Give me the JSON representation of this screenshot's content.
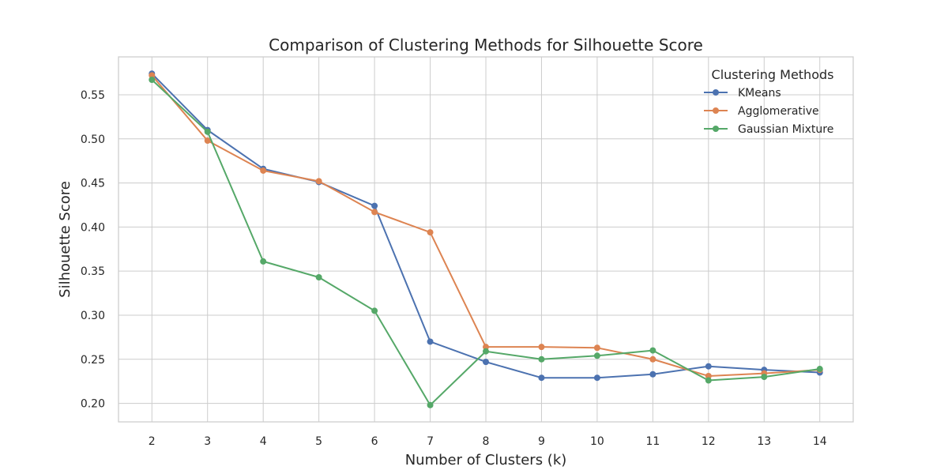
{
  "chart_data": {
    "type": "line",
    "title": "Comparison of Clustering Methods for Silhouette Score",
    "xlabel": "Number of Clusters (k)",
    "ylabel": "Silhouette Score",
    "x": [
      2,
      3,
      4,
      5,
      6,
      7,
      8,
      9,
      10,
      11,
      12,
      13,
      14
    ],
    "xlim": [
      1.4,
      14.6
    ],
    "ylim": [
      0.179,
      0.593
    ],
    "yticks": [
      0.2,
      0.25,
      0.3,
      0.35,
      0.4,
      0.45,
      0.5,
      0.55
    ],
    "grid": true,
    "legend": {
      "title": "Clustering Methods",
      "position": "top-right"
    },
    "series": [
      {
        "name": "KMeans",
        "color": "#4c72b0",
        "values": [
          0.574,
          0.51,
          0.466,
          0.451,
          0.424,
          0.27,
          0.247,
          0.229,
          0.229,
          0.233,
          0.242,
          0.238,
          0.235
        ]
      },
      {
        "name": "Agglomerative",
        "color": "#dd8452",
        "values": [
          0.572,
          0.498,
          0.464,
          0.452,
          0.417,
          0.394,
          0.264,
          0.264,
          0.263,
          0.25,
          0.231,
          0.234,
          0.238
        ]
      },
      {
        "name": "Gaussian Mixture",
        "color": "#55a868",
        "values": [
          0.567,
          0.508,
          0.361,
          0.343,
          0.305,
          0.198,
          0.259,
          0.25,
          0.254,
          0.26,
          0.226,
          0.23,
          0.239
        ]
      }
    ]
  }
}
